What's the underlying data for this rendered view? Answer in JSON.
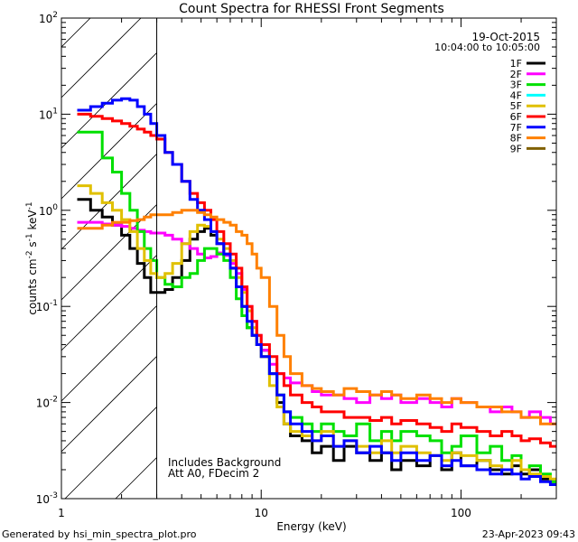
{
  "chart_data": {
    "type": "line",
    "title": "Count Spectra for RHESSI Front Segments",
    "xlabel": "Energy (keV)",
    "ylabel_parts": [
      "counts cm",
      "-2",
      " s",
      "-1",
      " keV",
      "-1"
    ],
    "xscale": "log",
    "yscale": "log",
    "xlim": [
      1,
      300
    ],
    "ylim": [
      0.001,
      100
    ],
    "x_ticks": [
      {
        "value": 1,
        "label": "1"
      },
      {
        "value": 10,
        "label": "10"
      },
      {
        "value": 100,
        "label": "100"
      }
    ],
    "y_ticks": [
      {
        "value": 0.001,
        "base": "10",
        "exp": "-3"
      },
      {
        "value": 0.01,
        "base": "10",
        "exp": "-2"
      },
      {
        "value": 0.1,
        "base": "10",
        "exp": "-1"
      },
      {
        "value": 1,
        "base": "10",
        "exp": "0"
      },
      {
        "value": 10,
        "base": "10",
        "exp": "1"
      },
      {
        "value": 100,
        "base": "10",
        "exp": "2"
      }
    ],
    "date": "19-Oct-2015",
    "time_range": "10:04:00 to 10:05:00",
    "annotations": [
      "Includes Background",
      "Att A0, FDecim 2"
    ],
    "shaded_region": {
      "x_from": 1,
      "x_to": 3
    },
    "legend_location": "top-right",
    "series": [
      {
        "name": "1F",
        "color": "#000000",
        "drawn": true,
        "x": [
          1.2,
          1.4,
          1.6,
          1.8,
          2.0,
          2.2,
          2.4,
          2.6,
          2.8,
          3.0,
          3.3,
          3.6,
          4.0,
          4.4,
          4.8,
          5.2,
          5.6,
          6.0,
          6.5,
          7.0,
          7.5,
          8.0,
          8.5,
          9.0,
          9.5,
          10,
          11,
          12,
          13,
          14,
          16,
          18,
          20,
          23,
          26,
          30,
          35,
          40,
          45,
          50,
          60,
          70,
          80,
          90,
          100,
          120,
          140,
          160,
          180,
          200,
          220,
          250,
          280
        ],
        "values": [
          1.3,
          1.0,
          0.85,
          0.7,
          0.55,
          0.4,
          0.28,
          0.2,
          0.14,
          0.14,
          0.15,
          0.2,
          0.3,
          0.5,
          0.6,
          0.65,
          0.55,
          0.45,
          0.35,
          0.25,
          0.16,
          0.1,
          0.06,
          0.05,
          0.04,
          0.035,
          0.02,
          0.01,
          0.006,
          0.0045,
          0.004,
          0.003,
          0.0035,
          0.0025,
          0.0035,
          0.003,
          0.0025,
          0.003,
          0.002,
          0.0025,
          0.0022,
          0.0028,
          0.002,
          0.003,
          0.0022,
          0.0025,
          0.002,
          0.0018,
          0.0022,
          0.0018,
          0.002,
          0.0016,
          0.0015
        ]
      },
      {
        "name": "2F",
        "color": "#ff00ff",
        "drawn": true,
        "x": [
          1.2,
          1.4,
          1.6,
          1.8,
          2.0,
          2.2,
          2.4,
          2.6,
          2.8,
          3.0,
          3.3,
          3.6,
          4.0,
          4.4,
          4.8,
          5.2,
          5.6,
          6.0,
          6.5,
          7.0,
          7.5,
          8.0,
          8.5,
          9.0,
          9.5,
          10,
          11,
          12,
          13,
          14,
          16,
          18,
          20,
          23,
          26,
          30,
          35,
          40,
          45,
          50,
          60,
          70,
          80,
          90,
          100,
          120,
          140,
          160,
          180,
          200,
          220,
          250,
          280
        ],
        "values": [
          0.75,
          0.75,
          0.72,
          0.7,
          0.68,
          0.65,
          0.62,
          0.6,
          0.58,
          0.58,
          0.55,
          0.5,
          0.45,
          0.4,
          0.35,
          0.32,
          0.33,
          0.36,
          0.34,
          0.28,
          0.22,
          0.15,
          0.1,
          0.07,
          0.05,
          0.035,
          0.025,
          0.02,
          0.018,
          0.016,
          0.015,
          0.013,
          0.012,
          0.012,
          0.011,
          0.01,
          0.012,
          0.011,
          0.012,
          0.01,
          0.011,
          0.01,
          0.009,
          0.011,
          0.01,
          0.009,
          0.008,
          0.009,
          0.008,
          0.007,
          0.008,
          0.007,
          0.006
        ]
      },
      {
        "name": "3F",
        "color": "#00e000",
        "drawn": true,
        "x": [
          1.2,
          1.4,
          1.6,
          1.8,
          2.0,
          2.2,
          2.4,
          2.6,
          2.8,
          3.0,
          3.3,
          3.6,
          4.0,
          4.4,
          4.8,
          5.2,
          5.6,
          6.0,
          6.5,
          7.0,
          7.5,
          8.0,
          8.5,
          9.0,
          9.5,
          10,
          11,
          12,
          13,
          14,
          16,
          18,
          20,
          23,
          26,
          30,
          35,
          40,
          45,
          50,
          60,
          70,
          80,
          90,
          100,
          120,
          140,
          160,
          180,
          200,
          220,
          250,
          280
        ],
        "values": [
          6.5,
          6.5,
          3.5,
          2.5,
          1.5,
          1.0,
          0.6,
          0.4,
          0.3,
          0.2,
          0.17,
          0.16,
          0.2,
          0.22,
          0.3,
          0.4,
          0.4,
          0.35,
          0.3,
          0.2,
          0.12,
          0.08,
          0.06,
          0.05,
          0.04,
          0.03,
          0.02,
          0.012,
          0.008,
          0.007,
          0.006,
          0.005,
          0.006,
          0.005,
          0.0045,
          0.006,
          0.004,
          0.005,
          0.004,
          0.005,
          0.0045,
          0.004,
          0.003,
          0.0035,
          0.0045,
          0.003,
          0.0035,
          0.0025,
          0.0028,
          0.002,
          0.0022,
          0.0018,
          0.0015
        ]
      },
      {
        "name": "4F",
        "color": "#00ffff",
        "drawn": false
      },
      {
        "name": "5F",
        "color": "#e0c000",
        "drawn": true,
        "x": [
          1.2,
          1.4,
          1.6,
          1.8,
          2.0,
          2.2,
          2.4,
          2.6,
          2.8,
          3.0,
          3.3,
          3.6,
          4.0,
          4.4,
          4.8,
          5.2,
          5.6,
          6.0,
          6.5,
          7.0,
          7.5,
          8.0,
          8.5,
          9.0,
          9.5,
          10,
          11,
          12,
          13,
          14,
          16,
          18,
          20,
          23,
          26,
          30,
          35,
          40,
          45,
          50,
          60,
          70,
          80,
          90,
          100,
          120,
          140,
          160,
          180,
          200,
          220,
          250,
          280
        ],
        "values": [
          1.8,
          1.5,
          1.2,
          1.0,
          0.8,
          0.6,
          0.4,
          0.3,
          0.22,
          0.2,
          0.22,
          0.28,
          0.45,
          0.6,
          0.7,
          0.68,
          0.6,
          0.5,
          0.4,
          0.3,
          0.2,
          0.14,
          0.09,
          0.06,
          0.04,
          0.03,
          0.015,
          0.009,
          0.006,
          0.005,
          0.0045,
          0.004,
          0.005,
          0.0035,
          0.004,
          0.0035,
          0.003,
          0.004,
          0.003,
          0.0035,
          0.003,
          0.0028,
          0.0025,
          0.003,
          0.0028,
          0.0025,
          0.0022,
          0.002,
          0.0025,
          0.002,
          0.0018,
          0.0017,
          0.0016
        ]
      },
      {
        "name": "6F",
        "color": "#ff0000",
        "drawn": true,
        "x": [
          1.2,
          1.4,
          1.6,
          1.8,
          2.0,
          2.2,
          2.4,
          2.6,
          2.8,
          3.0,
          3.3,
          3.6,
          4.0,
          4.4,
          4.8,
          5.2,
          5.6,
          6.0,
          6.5,
          7.0,
          7.5,
          8.0,
          8.5,
          9.0,
          9.5,
          10,
          11,
          12,
          13,
          14,
          16,
          18,
          20,
          23,
          26,
          30,
          35,
          40,
          45,
          50,
          60,
          70,
          80,
          90,
          100,
          120,
          140,
          160,
          180,
          200,
          220,
          250,
          280
        ],
        "values": [
          10,
          9.5,
          9.0,
          8.5,
          8.0,
          7.5,
          7.0,
          6.5,
          6.0,
          5.5,
          4.0,
          3.0,
          2.0,
          1.5,
          1.2,
          1.0,
          0.8,
          0.6,
          0.45,
          0.35,
          0.25,
          0.16,
          0.1,
          0.07,
          0.05,
          0.04,
          0.03,
          0.02,
          0.015,
          0.012,
          0.01,
          0.009,
          0.008,
          0.008,
          0.007,
          0.007,
          0.0065,
          0.007,
          0.006,
          0.0065,
          0.006,
          0.0055,
          0.005,
          0.006,
          0.0055,
          0.005,
          0.0045,
          0.005,
          0.0045,
          0.004,
          0.0042,
          0.0038,
          0.0035
        ]
      },
      {
        "name": "7F",
        "color": "#0000ff",
        "drawn": true,
        "x": [
          1.2,
          1.4,
          1.6,
          1.8,
          2.0,
          2.2,
          2.4,
          2.6,
          2.8,
          3.0,
          3.3,
          3.6,
          4.0,
          4.4,
          4.8,
          5.2,
          5.6,
          6.0,
          6.5,
          7.0,
          7.5,
          8.0,
          8.5,
          9.0,
          9.5,
          10,
          11,
          12,
          13,
          14,
          16,
          18,
          20,
          23,
          26,
          30,
          35,
          40,
          45,
          50,
          60,
          70,
          80,
          90,
          100,
          120,
          140,
          160,
          180,
          200,
          220,
          250,
          280
        ],
        "values": [
          11,
          12,
          13,
          14,
          14.5,
          14,
          12,
          10,
          8,
          6,
          4,
          3,
          2,
          1.3,
          1.0,
          0.8,
          0.6,
          0.45,
          0.35,
          0.25,
          0.16,
          0.1,
          0.07,
          0.05,
          0.04,
          0.03,
          0.02,
          0.012,
          0.008,
          0.006,
          0.005,
          0.004,
          0.0045,
          0.0035,
          0.004,
          0.003,
          0.0035,
          0.003,
          0.0025,
          0.003,
          0.0025,
          0.0028,
          0.0022,
          0.0025,
          0.0022,
          0.002,
          0.0018,
          0.002,
          0.0018,
          0.0016,
          0.0017,
          0.0015,
          0.0014
        ]
      },
      {
        "name": "8F",
        "color": "#ff8000",
        "drawn": true,
        "x": [
          1.2,
          1.4,
          1.6,
          1.8,
          2.0,
          2.2,
          2.4,
          2.6,
          2.8,
          3.0,
          3.3,
          3.6,
          4.0,
          4.4,
          4.8,
          5.2,
          5.6,
          6.0,
          6.5,
          7.0,
          7.5,
          8.0,
          8.5,
          9.0,
          9.5,
          10,
          11,
          12,
          13,
          14,
          16,
          18,
          20,
          23,
          26,
          30,
          35,
          40,
          45,
          50,
          60,
          70,
          80,
          90,
          100,
          120,
          140,
          160,
          180,
          200,
          220,
          250,
          280
        ],
        "values": [
          0.65,
          0.65,
          0.7,
          0.75,
          0.75,
          0.78,
          0.8,
          0.85,
          0.9,
          0.9,
          0.9,
          0.95,
          1.0,
          1.0,
          0.95,
          0.9,
          0.85,
          0.8,
          0.75,
          0.7,
          0.6,
          0.55,
          0.45,
          0.35,
          0.25,
          0.2,
          0.1,
          0.05,
          0.03,
          0.02,
          0.015,
          0.014,
          0.013,
          0.012,
          0.014,
          0.013,
          0.012,
          0.013,
          0.012,
          0.011,
          0.012,
          0.011,
          0.01,
          0.011,
          0.01,
          0.009,
          0.009,
          0.008,
          0.008,
          0.007,
          0.007,
          0.006,
          0.006
        ]
      },
      {
        "name": "9F",
        "color": "#806000",
        "drawn": false
      }
    ]
  },
  "footer": {
    "left": "Generated by hsi_min_spectra_plot.pro",
    "right": "23-Apr-2023 09:43"
  }
}
